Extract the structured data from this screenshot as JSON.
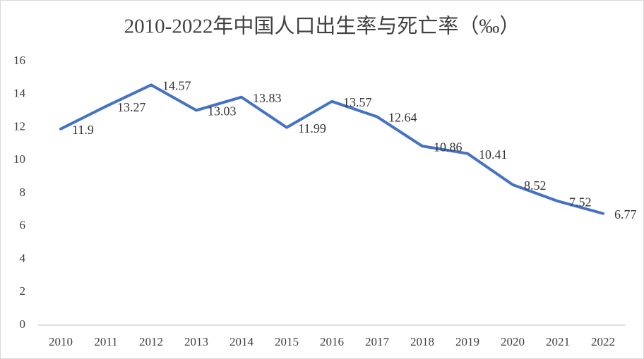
{
  "chart_data": {
    "type": "line",
    "title": "2010-2022年中国人口出生率与死亡率（‰）",
    "categories": [
      "2010",
      "2011",
      "2012",
      "2013",
      "2014",
      "2015",
      "2016",
      "2017",
      "2018",
      "2019",
      "2020",
      "2021",
      "2022"
    ],
    "values": [
      11.9,
      13.27,
      14.57,
      13.03,
      13.83,
      11.99,
      13.57,
      12.64,
      10.86,
      10.41,
      8.52,
      7.52,
      6.77
    ],
    "color": "#4472c4",
    "ylim": [
      0,
      16
    ],
    "yticks": [
      0,
      2,
      4,
      6,
      8,
      10,
      12,
      14,
      16
    ],
    "grid": false
  }
}
